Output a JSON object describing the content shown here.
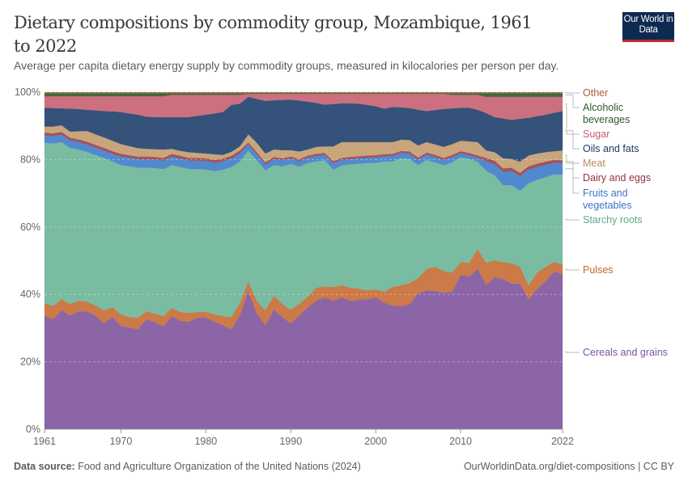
{
  "header": {
    "title": "Dietary compositions by commodity group, Mozambique, 1961 to 2022",
    "subtitle": "Average per capita dietary energy supply by commodity groups, measured in kilocalories per person per day.",
    "logo_text": "Our World in Data"
  },
  "footer": {
    "source_label": "Data source:",
    "source_text": "Food and Agriculture Organization of the United Nations (2024)",
    "url": "OurWorldinData.org/diet-compositions | CC BY"
  },
  "chart_data": {
    "type": "area",
    "stacked": "relative",
    "title": "Dietary compositions by commodity group, Mozambique, 1961 to 2022",
    "xlabel": "",
    "ylabel": "",
    "xlim": [
      1961,
      2022
    ],
    "ylim": [
      0,
      100
    ],
    "x_ticks": [
      "1961",
      "1970",
      "1980",
      "1990",
      "2000",
      "2010",
      "2022"
    ],
    "y_ticks": [
      "0%",
      "20%",
      "40%",
      "60%",
      "80%",
      "100%"
    ],
    "grid": "horizontal dashed",
    "legend_position": "right (inline labels)",
    "x": [
      1961,
      1962,
      1963,
      1964,
      1965,
      1966,
      1967,
      1968,
      1969,
      1970,
      1971,
      1972,
      1973,
      1974,
      1975,
      1976,
      1977,
      1978,
      1979,
      1980,
      1981,
      1982,
      1983,
      1984,
      1985,
      1986,
      1987,
      1988,
      1989,
      1990,
      1991,
      1992,
      1993,
      1994,
      1995,
      1996,
      1997,
      1998,
      1999,
      2000,
      2001,
      2002,
      2003,
      2004,
      2005,
      2006,
      2007,
      2008,
      2009,
      2010,
      2011,
      2012,
      2013,
      2014,
      2015,
      2016,
      2017,
      2018,
      2019,
      2020,
      2021,
      2022
    ],
    "series": [
      {
        "name": "Cereals and grains",
        "color": "#8c65a7",
        "values": [
          33.8,
          32.6,
          35.3,
          33.8,
          35,
          35,
          33.8,
          31.4,
          33.3,
          30.7,
          30.2,
          29.7,
          32.6,
          31.7,
          30.5,
          33.6,
          32.1,
          31.9,
          33.1,
          33.1,
          31.9,
          30.9,
          29.7,
          33.8,
          41,
          34.3,
          30.9,
          35.5,
          33.3,
          31.4,
          33.8,
          36.2,
          38.1,
          39.1,
          38.1,
          39.1,
          38.1,
          38.4,
          38.6,
          39.1,
          37.6,
          36.7,
          36.5,
          37.2,
          40.3,
          41.2,
          41,
          40.5,
          40.8,
          45.8,
          45.3,
          47.7,
          42.9,
          45.1,
          44.6,
          43.2,
          43.2,
          38.6,
          41.7,
          43.9,
          46.8,
          46
        ]
      },
      {
        "name": "Pulses",
        "color": "#cc7a48",
        "values": [
          3.6,
          3.9,
          3.3,
          3.4,
          3.1,
          2.9,
          2.9,
          3.9,
          2.9,
          3.4,
          3.1,
          3.4,
          2.4,
          2.6,
          3.1,
          2.4,
          2.7,
          2.6,
          1.7,
          1.7,
          2.2,
          2.7,
          3.6,
          3.6,
          2.9,
          3.8,
          4.4,
          4.1,
          3.9,
          4.1,
          3.4,
          3.1,
          3.9,
          3.3,
          4.1,
          3.6,
          3.9,
          3.3,
          2.6,
          2.4,
          3.2,
          5.5,
          6.2,
          6.2,
          4.5,
          6.3,
          7.2,
          6.5,
          5.7,
          3.8,
          4.1,
          5.8,
          6.5,
          5.0,
          5.0,
          6.0,
          5.0,
          4.1,
          4.8,
          4.3,
          2.8,
          2.9
        ]
      },
      {
        "name": "Starchy roots",
        "color": "#79bca1",
        "values": [
          47.6,
          48.3,
          46.6,
          46.3,
          44.9,
          44.4,
          44.7,
          45.2,
          43.3,
          44.3,
          44.7,
          44.5,
          42.6,
          43.2,
          43.6,
          42.4,
          43,
          42.7,
          42.4,
          42.3,
          42.5,
          43.4,
          44.5,
          42,
          38.8,
          41.7,
          41.5,
          38.8,
          40.8,
          43.2,
          40.7,
          39.7,
          37.5,
          37.4,
          34.8,
          35.6,
          36.6,
          37.1,
          37.8,
          37.6,
          38.6,
          37.3,
          37.7,
          36.8,
          33.6,
          32.4,
          31,
          31.3,
          32.7,
          31.1,
          30.8,
          25.9,
          27.3,
          25.3,
          22.8,
          23.2,
          22.6,
          30.3,
          27.5,
          26.6,
          26,
          26.7
        ]
      },
      {
        "name": "Fruits and vegetables",
        "color": "#5189cf",
        "values": [
          2.2,
          2.2,
          2.2,
          2.2,
          2.2,
          2.2,
          2.2,
          2.2,
          2.2,
          2.5,
          2.5,
          2.5,
          2.5,
          2.5,
          2.5,
          2.5,
          2.5,
          2.5,
          2.5,
          2.5,
          2.5,
          2.5,
          2.5,
          2.5,
          1.8,
          1.8,
          1.8,
          1.8,
          1.8,
          1.6,
          1.6,
          1.6,
          1.6,
          1.6,
          2.0,
          1.6,
          1.6,
          1.6,
          1.6,
          1.6,
          1.6,
          1.6,
          1.6,
          1.6,
          1.6,
          1.6,
          1.6,
          1.6,
          1.6,
          1.2,
          1.2,
          1.2,
          2.8,
          3.3,
          4.0,
          4.2,
          4.3,
          4.0,
          3.8,
          3.6,
          3.5,
          3.4
        ]
      },
      {
        "name": "Dairy and eggs",
        "color": "#a3525e",
        "values": [
          0.8,
          0.8,
          0.8,
          0.8,
          0.8,
          0.8,
          0.8,
          0.8,
          0.8,
          0.8,
          0.8,
          0.8,
          0.8,
          0.8,
          0.8,
          0.8,
          0.8,
          0.8,
          0.8,
          0.8,
          0.8,
          0.8,
          0.8,
          0.8,
          0.6,
          0.6,
          0.6,
          0.6,
          0.6,
          0.6,
          0.6,
          0.6,
          0.6,
          0.6,
          0.6,
          0.6,
          0.6,
          0.6,
          0.6,
          0.6,
          0.6,
          0.6,
          0.6,
          0.6,
          0.6,
          0.6,
          0.6,
          0.6,
          0.6,
          0.6,
          0.6,
          0.6,
          1.0,
          1.0,
          1.0,
          1.0,
          1.0,
          1.0,
          1.0,
          1.0,
          0.8,
          0.8
        ]
      },
      {
        "name": "Meat",
        "color": "#c9a57c",
        "values": [
          1.8,
          2.0,
          2.0,
          1.8,
          2.4,
          3.2,
          3.1,
          3.1,
          3.1,
          2.9,
          2.7,
          2.5,
          2.3,
          2.3,
          2.5,
          1.5,
          1.5,
          1.7,
          1.5,
          1.4,
          1.7,
          1.1,
          1.2,
          1.2,
          2.4,
          2.8,
          2.6,
          2.2,
          2.4,
          1.9,
          2.3,
          1.8,
          2.1,
          1.9,
          4.3,
          4.7,
          4.4,
          4.2,
          4.0,
          3.9,
          3.6,
          3.5,
          3.3,
          3.4,
          3.6,
          3.1,
          3.1,
          3.3,
          3.2,
          3.1,
          3.4,
          4.0,
          2.2,
          2.5,
          3.0,
          2.6,
          3.3,
          3.2,
          3.0,
          2.8,
          2.6,
          2.9
        ]
      },
      {
        "name": "Oils and fats",
        "color": "#34527a",
        "values": [
          5.6,
          5.5,
          5.0,
          6.8,
          6.6,
          6.3,
          7.1,
          7.8,
          8.7,
          9.5,
          9.7,
          9.9,
          9.5,
          9.5,
          9.6,
          9.4,
          10,
          10.4,
          11,
          11.5,
          12.1,
          12.7,
          13.9,
          12.7,
          11.1,
          13,
          15.6,
          14.6,
          14.9,
          15,
          15.1,
          14.2,
          13,
          12.4,
          12.6,
          11.5,
          11.5,
          11.4,
          11,
          10.6,
          9.9,
          10.4,
          9.6,
          9.5,
          10.6,
          9.2,
          10.2,
          11.2,
          10.6,
          9.8,
          10,
          9.6,
          11.1,
          10.4,
          11.8,
          11.6,
          12.7,
          11.2,
          11.1,
          11.1,
          11.4,
          11.7
        ]
      },
      {
        "name": "Sugar",
        "color": "#cc7080",
        "values": [
          3.4,
          3.5,
          3.6,
          3.7,
          3.8,
          4.0,
          4.2,
          4.4,
          4.5,
          4.7,
          5.1,
          5.5,
          6.1,
          6.2,
          6.2,
          6.6,
          6.6,
          6.6,
          6.2,
          5.9,
          5.5,
          5.1,
          3.0,
          2.6,
          0.9,
          1.5,
          2.1,
          1.9,
          1.8,
          1.7,
          2.0,
          2.3,
          2.7,
          3.2,
          3.0,
          2.8,
          2.8,
          2.9,
          3.3,
          3.7,
          4.4,
          3.9,
          4.0,
          4.2,
          4.7,
          5.1,
          4.8,
          4.5,
          4.0,
          3.8,
          3.8,
          4.4,
          4.8,
          6.0,
          6.4,
          6.8,
          6.5,
          6.2,
          5.7,
          5.3,
          4.7,
          4.2
        ]
      },
      {
        "name": "Alcoholic beverages",
        "color": "#3e6b3a",
        "values": [
          0.9,
          0.9,
          0.9,
          0.9,
          0.9,
          0.9,
          0.9,
          0.9,
          0.9,
          0.9,
          0.9,
          0.9,
          0.9,
          0.9,
          0.9,
          0.5,
          0.5,
          0.5,
          0.5,
          0.5,
          0.5,
          0.5,
          0.5,
          0.5,
          0.2,
          0.2,
          0.2,
          0.2,
          0.2,
          0.2,
          0.2,
          0.2,
          0.2,
          0.2,
          0.2,
          0.2,
          0.2,
          0.2,
          0.2,
          0.2,
          0.2,
          0.2,
          0.2,
          0.2,
          0.2,
          0.2,
          0.2,
          0.2,
          0.5,
          0.5,
          0.5,
          0.5,
          1.1,
          1.1,
          1.1,
          1.1,
          1.1,
          1.1,
          1.1,
          1.1,
          1.1,
          1.1
        ]
      },
      {
        "name": "Other",
        "color": "#a66a46",
        "values": [
          0.3,
          0.3,
          0.3,
          0.3,
          0.3,
          0.3,
          0.3,
          0.3,
          0.3,
          0.3,
          0.3,
          0.3,
          0.3,
          0.3,
          0.3,
          0.3,
          0.3,
          0.3,
          0.3,
          0.3,
          0.3,
          0.3,
          0.3,
          0.3,
          0.3,
          0.3,
          0.3,
          0.3,
          0.3,
          0.3,
          0.3,
          0.3,
          0.3,
          0.3,
          0.3,
          0.3,
          0.3,
          0.3,
          0.3,
          0.3,
          0.3,
          0.3,
          0.3,
          0.3,
          0.3,
          0.3,
          0.3,
          0.3,
          0.3,
          0.3,
          0.3,
          0.3,
          0.3,
          0.3,
          0.3,
          0.3,
          0.3,
          0.3,
          0.3,
          0.3,
          0.3,
          0.3
        ]
      }
    ],
    "legend_labels": [
      {
        "series": "Other",
        "lines": [
          "Other"
        ],
        "color": "#a6603a"
      },
      {
        "series": "Alcoholic beverages",
        "lines": [
          "Alcoholic",
          "beverages"
        ],
        "color": "#2e5a2a"
      },
      {
        "series": "Sugar",
        "lines": [
          "Sugar"
        ],
        "color": "#c95a70"
      },
      {
        "series": "Oils and fats",
        "lines": [
          "Oils and fats"
        ],
        "color": "#1c3865"
      },
      {
        "series": "Meat",
        "lines": [
          "Meat"
        ],
        "color": "#b88c5a"
      },
      {
        "series": "Dairy and eggs",
        "lines": [
          "Dairy and eggs"
        ],
        "color": "#94303f"
      },
      {
        "series": "Fruits and vegetables",
        "lines": [
          "Fruits and",
          "vegetables"
        ],
        "color": "#3b74c6"
      },
      {
        "series": "Starchy roots",
        "lines": [
          "Starchy roots"
        ],
        "color": "#5fa888"
      },
      {
        "series": "Pulses",
        "lines": [
          "Pulses"
        ],
        "color": "#c8652c"
      },
      {
        "series": "Cereals and grains",
        "lines": [
          "Cereals and grains"
        ],
        "color": "#7b52a0"
      }
    ]
  }
}
